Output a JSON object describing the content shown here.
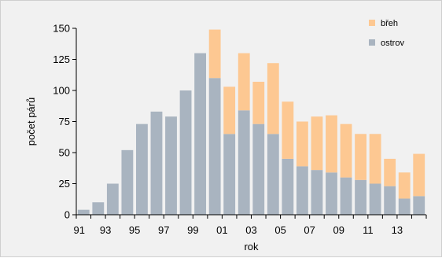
{
  "chart_data": {
    "type": "bar",
    "stacked": true,
    "xlabel": "rok",
    "ylabel": "počet párů",
    "ylim": [
      0,
      150
    ],
    "yticks": [
      0,
      25,
      50,
      75,
      100,
      125,
      150
    ],
    "categories": [
      "1991",
      "1992",
      "1993",
      "1994",
      "1995",
      "1996",
      "1997",
      "1998",
      "1999",
      "2000",
      "2001",
      "2002",
      "2003",
      "2004",
      "2005",
      "2006",
      "2007",
      "2008",
      "2009",
      "2010",
      "2011",
      "2012",
      "2013",
      "2014"
    ],
    "xtick_labels": [
      "91",
      "",
      "93",
      "",
      "95",
      "",
      "97",
      "",
      "99",
      "",
      "01",
      "",
      "03",
      "",
      "05",
      "",
      "07",
      "",
      "09",
      "",
      "11",
      "",
      "13",
      ""
    ],
    "series": [
      {
        "name": "ostrov",
        "color": "#a9b4c0",
        "values": [
          4,
          10,
          25,
          52,
          73,
          83,
          79,
          100,
          130,
          110,
          65,
          84,
          73,
          65,
          45,
          39,
          36,
          34,
          30,
          28,
          25,
          23,
          13,
          15
        ]
      },
      {
        "name": "břeh",
        "color": "#fdc892",
        "values": [
          0,
          0,
          0,
          0,
          0,
          0,
          0,
          0,
          0,
          39,
          38,
          46,
          34,
          57,
          46,
          36,
          43,
          46,
          43,
          37,
          40,
          22,
          21,
          34
        ]
      }
    ],
    "legend": {
      "position": "top-right",
      "order": [
        "břeh",
        "ostrov"
      ]
    },
    "grid": false
  }
}
